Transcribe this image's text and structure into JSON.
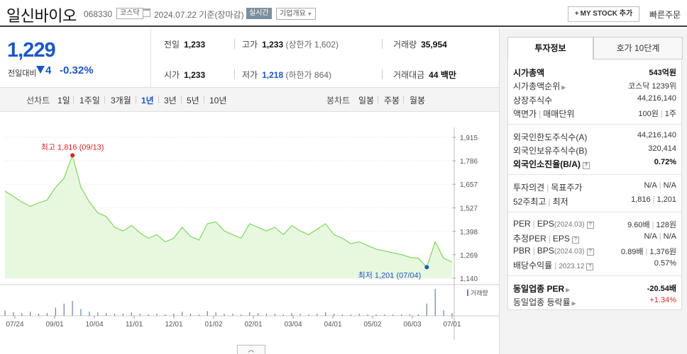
{
  "header": {
    "stock_name": "일신바이오",
    "stock_code": "068330",
    "market": "코스닥",
    "date_text": "2024.07.22  기준(장마감)",
    "realtime_label": "실시간",
    "company_overview_label": "기업개요",
    "mystock_label": "MY STOCK 추가",
    "quick_order_label": "빠른주문"
  },
  "price": {
    "current": "1,229",
    "compare_label": "전일대비",
    "change": "4",
    "change_pct": "-0.32%"
  },
  "quote": {
    "prev_close_label": "전일",
    "prev_close": "1,233",
    "high_label": "고가",
    "high": "1,233",
    "upper_limit": "(상한가 1,602)",
    "volume_label": "거래량",
    "volume": "35,954",
    "open_label": "시가",
    "open": "1,233",
    "low_label": "저가",
    "low": "1,218",
    "lower_limit": "(하한가 864)",
    "amount_label": "거래대금",
    "amount": "44 백만"
  },
  "periods": {
    "line_title": "선차트",
    "line": [
      "1일",
      "1주일",
      "3개월",
      "1년",
      "3년",
      "5년",
      "10년"
    ],
    "active": "1년",
    "candle_title": "봉차트",
    "candle": [
      "일봉",
      "주봉",
      "월봉"
    ]
  },
  "chart_data": {
    "type": "area",
    "yticks": [
      1915,
      1786,
      1657,
      1527,
      1398,
      1269,
      1140
    ],
    "ylim": [
      1140,
      1915
    ],
    "xticks": [
      "07/24",
      "09/01",
      "10/04",
      "11/01",
      "12/01",
      "01/02",
      "02/01",
      "03/04",
      "04/01",
      "05/02",
      "06/03",
      "07/01"
    ],
    "max_label": "최고 1,816 (09/13)",
    "min_label": "최저 1,201 (07/04)",
    "volume_label": "거래량",
    "colors": {
      "line": "#7fd65e",
      "fill": "#e8f8df",
      "max": "#e02020",
      "min": "#1a56c8"
    },
    "x": [
      "07/24",
      "07/31",
      "08/07",
      "08/14",
      "08/21",
      "08/28",
      "09/04",
      "09/11",
      "09/13",
      "09/20",
      "09/27",
      "10/04",
      "10/11",
      "10/18",
      "10/25",
      "11/01",
      "11/08",
      "11/15",
      "11/22",
      "11/29",
      "12/06",
      "12/13",
      "12/20",
      "12/27",
      "01/03",
      "01/10",
      "01/17",
      "01/24",
      "01/31",
      "02/07",
      "02/14",
      "02/21",
      "02/28",
      "03/06",
      "03/13",
      "03/20",
      "03/27",
      "04/03",
      "04/10",
      "04/17",
      "04/24",
      "05/01",
      "05/08",
      "05/15",
      "05/22",
      "05/29",
      "06/05",
      "06/12",
      "06/19",
      "06/26",
      "07/04",
      "07/08",
      "07/15",
      "07/22"
    ],
    "values": [
      1620,
      1590,
      1560,
      1535,
      1555,
      1570,
      1640,
      1690,
      1816,
      1640,
      1560,
      1500,
      1480,
      1420,
      1400,
      1430,
      1390,
      1360,
      1380,
      1340,
      1360,
      1420,
      1370,
      1350,
      1440,
      1450,
      1400,
      1380,
      1360,
      1440,
      1420,
      1400,
      1420,
      1380,
      1430,
      1400,
      1380,
      1410,
      1440,
      1380,
      1360,
      1330,
      1340,
      1320,
      1300,
      1290,
      1280,
      1270,
      1255,
      1250,
      1201,
      1340,
      1250,
      1229
    ],
    "volume": [
      8,
      5,
      4,
      6,
      3,
      4,
      12,
      18,
      22,
      10,
      6,
      5,
      4,
      3,
      3,
      5,
      3,
      2,
      3,
      2,
      3,
      6,
      3,
      2,
      7,
      5,
      3,
      3,
      2,
      5,
      4,
      3,
      3,
      2,
      4,
      3,
      2,
      3,
      5,
      3,
      2,
      2,
      3,
      2,
      2,
      2,
      2,
      2,
      2,
      2,
      18,
      40,
      8,
      4
    ]
  },
  "info": {
    "tab_active": "투자정보",
    "tab_other": "호가 10단계",
    "market_cap_label": "시가총액",
    "market_cap": "543억원",
    "cap_rank_label": "시가총액순위",
    "cap_rank": "코스닥 1239위",
    "shares_label": "상장주식수",
    "shares": "44,216,140",
    "par_label": "액면가",
    "unit_label": "매매단위",
    "par": "100원",
    "unit": "1주",
    "foreign_limit_label": "외국인한도주식수(A)",
    "foreign_limit": "44,216,140",
    "foreign_hold_label": "외국인보유주식수(B)",
    "foreign_hold": "320,414",
    "foreign_ratio_label": "외국인소진율(B/A)",
    "foreign_ratio": "0.72%",
    "opinion_label": "투자의견",
    "target_label": "목표주가",
    "opinion": "N/A",
    "target": "N/A",
    "w52_high_label": "52주최고",
    "w52_low_label": "최저",
    "w52_high": "1,816",
    "w52_low": "1,201",
    "per_label": "PER",
    "eps_label": "EPS",
    "eps_period": "(2024.03)",
    "per": "9.60배",
    "eps": "128원",
    "est_per_label": "추정PER",
    "est_eps_label": "EPS",
    "est_per": "N/A",
    "est_eps": "N/A",
    "pbr_label": "PBR",
    "bps_label": "BPS",
    "bps_period": "(2024.03)",
    "pbr": "0.89배",
    "bps": "1,376원",
    "div_label": "배당수익률",
    "div_period": "2023.12",
    "div": "0.57%",
    "sector_per_label": "동일업종 PER",
    "sector_per": "-20.54배",
    "sector_change_label": "동일업종 등락률",
    "sector_change": "+1.34%"
  }
}
